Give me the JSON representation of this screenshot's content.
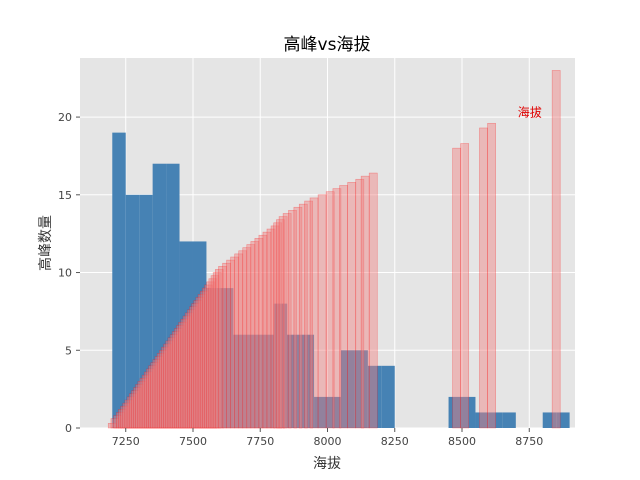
{
  "chart_data": {
    "type": "bar",
    "title": "高峰vs海拔",
    "xlabel": "海拔",
    "ylabel": "高峰数量",
    "xlim": [
      7080,
      8920
    ],
    "ylim": [
      0,
      23.8
    ],
    "xticks": [
      7250,
      7500,
      7750,
      8000,
      8250,
      8500,
      8750
    ],
    "yticks": [
      0,
      5,
      10,
      15,
      20
    ],
    "grid": true,
    "annotation": {
      "text": "海拔",
      "x": 8800,
      "y": 20.3,
      "color": "#e00000"
    },
    "colors": {
      "histogram": "#4682b4",
      "elevation_bars": "#f08080",
      "elevation_edge": "#ff0000",
      "panel": "#e5e5e5",
      "grid": "#ffffff"
    },
    "series": [
      {
        "type": "histogram",
        "bin_width": 50,
        "bins": [
          {
            "x0": 7200,
            "count": 19
          },
          {
            "x0": 7250,
            "count": 15
          },
          {
            "x0": 7300,
            "count": 15
          },
          {
            "x0": 7350,
            "count": 17
          },
          {
            "x0": 7400,
            "count": 17
          },
          {
            "x0": 7450,
            "count": 12
          },
          {
            "x0": 7500,
            "count": 12
          },
          {
            "x0": 7550,
            "count": 9
          },
          {
            "x0": 7600,
            "count": 9
          },
          {
            "x0": 7650,
            "count": 6
          },
          {
            "x0": 7700,
            "count": 6
          },
          {
            "x0": 7750,
            "count": 6
          },
          {
            "x0": 7800,
            "count": 8
          },
          {
            "x0": 7850,
            "count": 6
          },
          {
            "x0": 7900,
            "count": 6
          },
          {
            "x0": 7950,
            "count": 2
          },
          {
            "x0": 8000,
            "count": 2
          },
          {
            "x0": 8050,
            "count": 5
          },
          {
            "x0": 8100,
            "count": 5
          },
          {
            "x0": 8150,
            "count": 4
          },
          {
            "x0": 8200,
            "count": 4
          },
          {
            "x0": 8250,
            "count": 0
          },
          {
            "x0": 8300,
            "count": 0
          },
          {
            "x0": 8350,
            "count": 0
          },
          {
            "x0": 8400,
            "count": 0
          },
          {
            "x0": 8450,
            "count": 2
          },
          {
            "x0": 8500,
            "count": 2
          },
          {
            "x0": 8550,
            "count": 1
          },
          {
            "x0": 8600,
            "count": 1
          },
          {
            "x0": 8650,
            "count": 1
          },
          {
            "x0": 8700,
            "count": 0
          },
          {
            "x0": 8750,
            "count": 0
          },
          {
            "x0": 8800,
            "count": 1
          },
          {
            "x0": 8850,
            "count": 1
          }
        ]
      },
      {
        "type": "bar",
        "bar_width": 30,
        "note": "one bar per peak, height = rank",
        "x": [
          7200,
          7210,
          7220,
          7230,
          7238,
          7246,
          7254,
          7262,
          7270,
          7278,
          7286,
          7294,
          7302,
          7310,
          7318,
          7326,
          7334,
          7342,
          7350,
          7358,
          7366,
          7374,
          7382,
          7390,
          7398,
          7406,
          7414,
          7422,
          7430,
          7438,
          7446,
          7454,
          7462,
          7470,
          7478,
          7486,
          7494,
          7502,
          7510,
          7518,
          7526,
          7534,
          7542,
          7550,
          7558,
          7566,
          7574,
          7582,
          7590,
          7598,
          7610,
          7625,
          7640,
          7655,
          7670,
          7685,
          7700,
          7715,
          7730,
          7745,
          7760,
          7775,
          7790,
          7805,
          7815,
          7825,
          7835,
          7850,
          7870,
          7890,
          7910,
          7930,
          7950,
          7980,
          8010,
          8035,
          8060,
          8090,
          8120,
          8140,
          8170,
          8480,
          8510,
          8580,
          8610,
          8850
        ],
        "values": [
          0.3,
          0.6,
          0.8,
          1.0,
          1.2,
          1.4,
          1.6,
          1.8,
          2.0,
          2.2,
          2.4,
          2.6,
          2.8,
          3.0,
          3.2,
          3.4,
          3.6,
          3.8,
          4.0,
          4.2,
          4.4,
          4.6,
          4.8,
          5.0,
          5.2,
          5.4,
          5.6,
          5.8,
          6.0,
          6.2,
          6.4,
          6.6,
          6.8,
          7.0,
          7.2,
          7.4,
          7.6,
          7.8,
          8.0,
          8.2,
          8.4,
          8.6,
          8.8,
          9.0,
          9.2,
          9.4,
          9.6,
          9.8,
          10.0,
          10.2,
          10.4,
          10.6,
          10.8,
          11.0,
          11.2,
          11.4,
          11.6,
          11.8,
          12.0,
          12.2,
          12.4,
          12.6,
          12.8,
          13.0,
          13.2,
          13.4,
          13.6,
          13.8,
          14.0,
          14.2,
          14.4,
          14.6,
          14.8,
          15.0,
          15.2,
          15.4,
          15.6,
          15.8,
          16.0,
          16.2,
          16.4,
          18.0,
          18.3,
          19.3,
          19.6,
          23.0
        ]
      }
    ]
  }
}
